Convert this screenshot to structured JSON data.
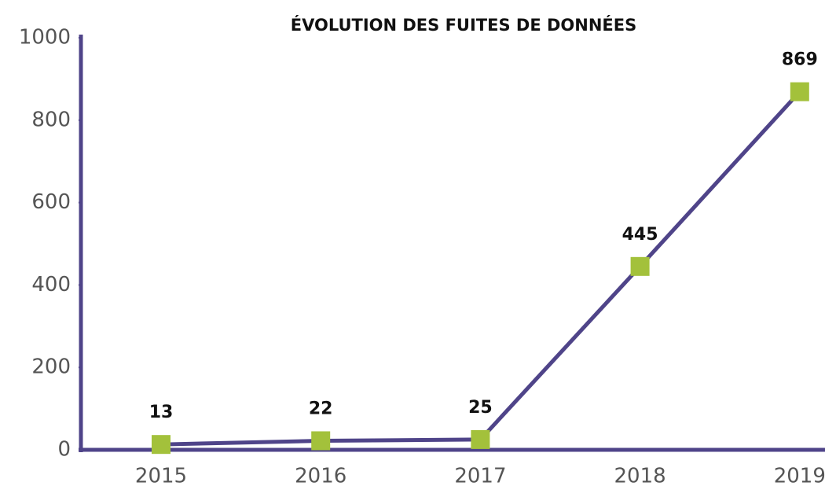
{
  "chart_data": {
    "type": "line",
    "title": "ÉVOLUTION DES FUITES DE DONNÉES",
    "categories": [
      "2015",
      "2016",
      "2017",
      "2018",
      "2019"
    ],
    "values": [
      13,
      22,
      25,
      445,
      869
    ],
    "color": "#4f4489",
    "marker_color": "#a3c13b",
    "ylim": [
      0,
      1000
    ],
    "yticks": [
      0,
      200,
      400,
      600,
      800,
      1000
    ],
    "grid": false
  }
}
